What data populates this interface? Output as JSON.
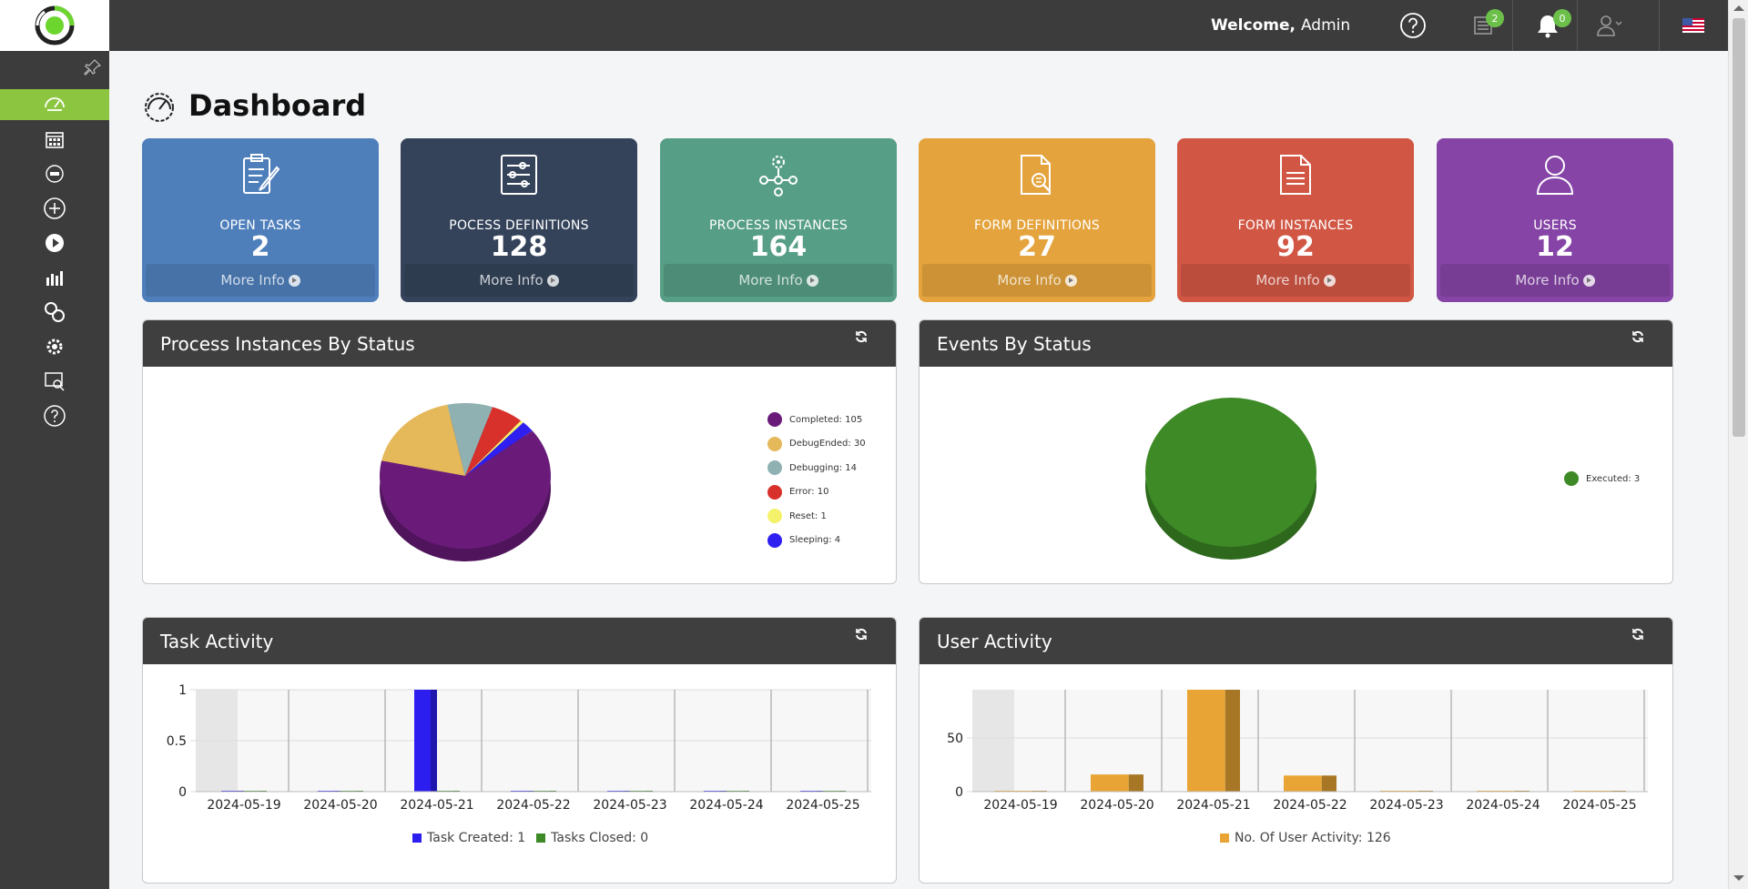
{
  "header": {
    "welcome_label": "Welcome,",
    "user_name": "Admin",
    "tasks_badge": "2",
    "notifications_badge": "0"
  },
  "page": {
    "title": "Dashboard"
  },
  "cards": [
    {
      "label": "OPEN TASKS",
      "value": "2",
      "more": "More Info",
      "color": "#4f7fbb",
      "icon": "clipboard-edit-icon"
    },
    {
      "label": "POCESS DEFINITIONS",
      "value": "128",
      "more": "More Info",
      "color": "#34435a",
      "icon": "process-flow-icon"
    },
    {
      "label": "PROCESS INSTANCES",
      "value": "164",
      "more": "More Info",
      "color": "#569e85",
      "icon": "gear-network-icon"
    },
    {
      "label": "FORM DEFINITIONS",
      "value": "27",
      "more": "More Info",
      "color": "#e4a33c",
      "icon": "document-search-icon"
    },
    {
      "label": "FORM INSTANCES",
      "value": "92",
      "more": "More Info",
      "color": "#d15644",
      "icon": "document-icon"
    },
    {
      "label": "USERS",
      "value": "12",
      "more": "More Info",
      "color": "#8544a6",
      "icon": "user-icon"
    }
  ],
  "panels": {
    "process_status": {
      "title": "Process Instances By Status"
    },
    "events_status": {
      "title": "Events By Status"
    },
    "task_activity": {
      "title": "Task Activity"
    },
    "user_activity": {
      "title": "User Activity"
    }
  },
  "chart_data": [
    {
      "type": "pie",
      "title": "Process Instances By Status",
      "categories": [
        "Completed",
        "DebugEnded",
        "Debugging",
        "Error",
        "Reset",
        "Sleeping"
      ],
      "values": [
        105,
        30,
        14,
        10,
        1,
        4
      ],
      "legend": [
        "Completed: 105",
        "DebugEnded: 30",
        "Debugging: 14",
        "Error: 10",
        "Reset: 1",
        "Sleeping: 4"
      ],
      "colors": [
        "#6a1b7a",
        "#e5b85a",
        "#8fb1b2",
        "#d8302a",
        "#f4f26a",
        "#2f1ff0"
      ]
    },
    {
      "type": "pie",
      "title": "Events By Status",
      "categories": [
        "Executed"
      ],
      "values": [
        3
      ],
      "legend": [
        "Executed: 3"
      ],
      "colors": [
        "#3d8a26"
      ]
    },
    {
      "type": "bar",
      "title": "Task Activity",
      "categories": [
        "2024-05-19",
        "2024-05-20",
        "2024-05-21",
        "2024-05-22",
        "2024-05-23",
        "2024-05-24",
        "2024-05-25"
      ],
      "series": [
        {
          "name": "Task Created",
          "values": [
            0,
            0,
            1,
            0,
            0,
            0,
            0
          ],
          "color": "#2d1ef0"
        },
        {
          "name": "Tasks Closed",
          "values": [
            0,
            0,
            0,
            0,
            0,
            0,
            0
          ],
          "color": "#3d8a26"
        }
      ],
      "yticks": [
        "0",
        "0.5",
        "1"
      ],
      "ylim": [
        0,
        1
      ],
      "legend": [
        "Task Created: 1",
        "Tasks Closed: 0"
      ]
    },
    {
      "type": "bar",
      "title": "User Activity",
      "categories": [
        "2024-05-19",
        "2024-05-20",
        "2024-05-21",
        "2024-05-22",
        "2024-05-23",
        "2024-05-24",
        "2024-05-25"
      ],
      "series": [
        {
          "name": "No. Of User Activity",
          "values": [
            0,
            16,
            95,
            15,
            0,
            0,
            0
          ],
          "color": "#e8a535"
        }
      ],
      "yticks": [
        "0",
        "50"
      ],
      "ylim": [
        0,
        95
      ],
      "legend": [
        "No. Of User Activity: 126"
      ]
    }
  ]
}
